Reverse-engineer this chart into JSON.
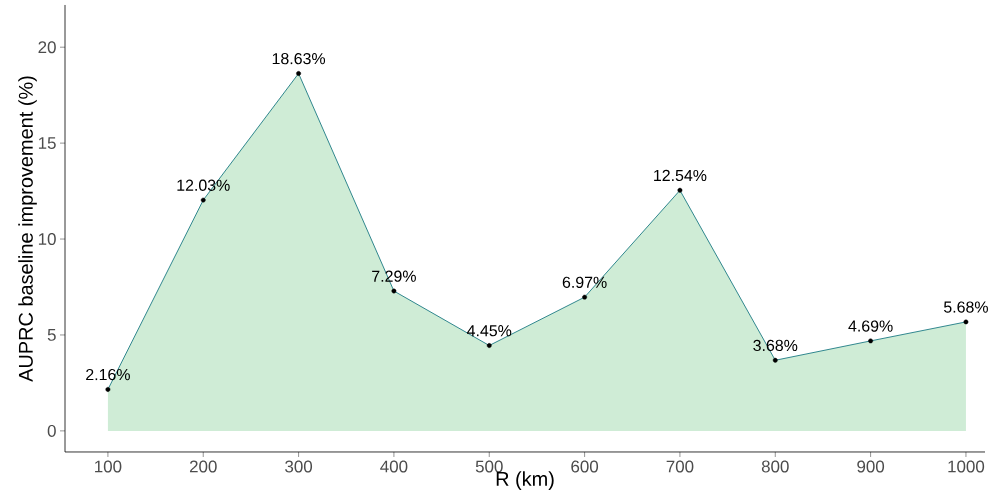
{
  "chart_data": {
    "type": "area",
    "xlabel": "R (km)",
    "ylabel": "AUPRC baseline improvement (%)",
    "x": [
      100,
      200,
      300,
      400,
      500,
      600,
      700,
      800,
      900,
      1000
    ],
    "series": [
      {
        "color": "#cfecd6",
        "marker": "circle",
        "values": [
          2.16,
          12.03,
          18.63,
          7.29,
          4.45,
          6.97,
          12.54,
          3.68,
          4.69,
          5.68
        ],
        "value_labels": [
          "2.16%",
          "12.03%",
          "18.63%",
          "7.29%",
          "4.45%",
          "6.97%",
          "12.54%",
          "3.68%",
          "4.69%",
          "5.68%"
        ]
      }
    ],
    "xlim": [
      55,
      1020
    ],
    "ylim": [
      -1.1,
      22.2
    ],
    "xticks": [
      100,
      200,
      300,
      400,
      500,
      600,
      700,
      800,
      900,
      1000
    ],
    "yticks": [
      0,
      5,
      10,
      15,
      20
    ],
    "grid": false
  }
}
